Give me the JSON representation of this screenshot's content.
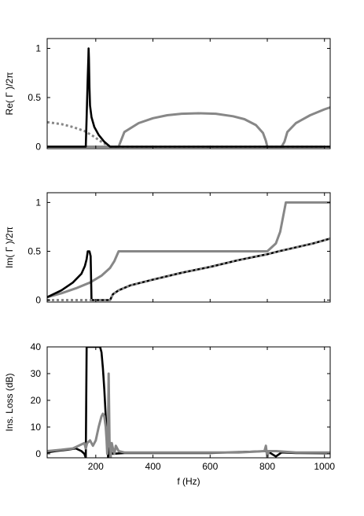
{
  "figure": {
    "xlabel": "f (Hz)"
  },
  "colors": {
    "black": "#000000",
    "gray": "#878787",
    "dotted": "#878787"
  },
  "chart_data": [
    {
      "type": "line",
      "ylabel": "Re( Γ )/2π",
      "xlim": [
        30,
        1020
      ],
      "ylim": [
        -0.02,
        1.1
      ],
      "xticks": [
        200,
        400,
        600,
        800,
        1000
      ],
      "xtick_labels": [
        "",
        "",
        "",
        "",
        ""
      ],
      "yticks": [
        0,
        0.5,
        1
      ],
      "ytick_labels": [
        "0",
        "0.5",
        "1"
      ],
      "series": [
        {
          "style": "dotted-gray",
          "x": [
            30,
            80,
            120,
            160,
            190,
            220,
            250,
            280,
            400,
            600,
            800,
            1000
          ],
          "y": [
            0.25,
            0.23,
            0.2,
            0.16,
            0.11,
            0.05,
            0,
            0,
            0,
            0,
            0,
            0
          ]
        },
        {
          "style": "solid-gray",
          "x": [
            30,
            250,
            280,
            300,
            350,
            400,
            450,
            500,
            560,
            620,
            680,
            720,
            760,
            785,
            795,
            800,
            850,
            860,
            870,
            900,
            950,
            1000,
            1020
          ],
          "y": [
            0,
            0,
            0,
            0.15,
            0.24,
            0.29,
            0.32,
            0.335,
            0.34,
            0.335,
            0.31,
            0.28,
            0.22,
            0.14,
            0.06,
            0,
            0,
            0.05,
            0.15,
            0.24,
            0.32,
            0.38,
            0.4
          ]
        },
        {
          "style": "solid-black",
          "x": [
            30,
            165,
            168,
            170,
            172,
            174,
            175,
            176,
            178,
            180,
            185,
            195,
            210,
            230,
            250,
            400,
            600,
            800,
            1000,
            1020
          ],
          "y": [
            0,
            0,
            0.3,
            0.5,
            0.7,
            0.9,
            1.0,
            0.9,
            0.6,
            0.42,
            0.3,
            0.2,
            0.12,
            0.05,
            0,
            0,
            0,
            0,
            0,
            0
          ]
        },
        {
          "style": "dotted-black",
          "x": [
            250,
            400,
            600,
            800,
            1020
          ],
          "y": [
            0,
            0,
            0,
            0,
            0
          ]
        }
      ]
    },
    {
      "type": "line",
      "ylabel": "Im( Γ )/2π",
      "xlim": [
        30,
        1020
      ],
      "ylim": [
        -0.02,
        1.1
      ],
      "xticks": [
        200,
        400,
        600,
        800,
        1000
      ],
      "xtick_labels": [
        "",
        "",
        "",
        "",
        ""
      ],
      "yticks": [
        0,
        0.5,
        1
      ],
      "ytick_labels": [
        "0",
        "0.5",
        "1"
      ],
      "series": [
        {
          "style": "solid-gray",
          "x": [
            30,
            80,
            130,
            180,
            220,
            250,
            265,
            280,
            400,
            600,
            800,
            830,
            845,
            855,
            865,
            1000,
            1020
          ],
          "y": [
            0.03,
            0.07,
            0.12,
            0.18,
            0.25,
            0.33,
            0.4,
            0.5,
            0.5,
            0.5,
            0.5,
            0.58,
            0.7,
            0.85,
            1.0,
            1.0,
            1.0
          ]
        },
        {
          "style": "solid-black",
          "x": [
            30,
            80,
            120,
            150,
            162,
            168,
            172,
            178,
            182,
            185,
            250,
            260,
            280,
            320,
            400,
            500,
            600,
            700,
            800,
            840,
            900,
            960,
            1020
          ],
          "y": [
            0.03,
            0.1,
            0.18,
            0.27,
            0.35,
            0.42,
            0.5,
            0.5,
            0.45,
            0,
            0,
            0.06,
            0.1,
            0.15,
            0.21,
            0.28,
            0.34,
            0.41,
            0.47,
            0.5,
            0.54,
            0.58,
            0.63
          ]
        },
        {
          "style": "dotted-gray",
          "x": [
            30,
            100,
            180,
            250,
            260,
            280,
            320,
            400,
            500,
            600,
            700,
            800,
            840,
            900,
            960,
            1020
          ],
          "y": [
            0,
            0,
            0,
            0,
            0.06,
            0.1,
            0.15,
            0.21,
            0.28,
            0.34,
            0.41,
            0.47,
            0.5,
            0.54,
            0.58,
            0.63
          ]
        }
      ]
    },
    {
      "type": "line",
      "ylabel": "Ins. Loss (dB)",
      "xlim": [
        30,
        1020
      ],
      "ylim": [
        -1.5,
        40
      ],
      "xticks": [
        200,
        400,
        600,
        800,
        1000
      ],
      "xtick_labels": [
        "200",
        "400",
        "600",
        "800",
        "1000"
      ],
      "yticks": [
        0,
        10,
        20,
        30,
        40
      ],
      "ytick_labels": [
        "0",
        "10",
        "20",
        "30",
        "40"
      ],
      "series": [
        {
          "style": "solid-black",
          "x": [
            30,
            60,
            100,
            130,
            150,
            160,
            165,
            168,
            172,
            180,
            200,
            215,
            220,
            225,
            230,
            235,
            240,
            243,
            246,
            250,
            260,
            300,
            400,
            600,
            800,
            830,
            850,
            900,
            1000,
            1020
          ],
          "y": [
            0.5,
            1,
            1.5,
            2,
            1,
            0,
            -1.5,
            40,
            40,
            40,
            40,
            40,
            38,
            32,
            24,
            14,
            6,
            -1.5,
            2,
            1,
            0,
            0.3,
            0.3,
            0.3,
            1,
            -1,
            0.5,
            0.3,
            0.2,
            0.2
          ]
        },
        {
          "style": "solid-gray",
          "x": [
            30,
            80,
            120,
            150,
            160,
            165,
            170,
            180,
            190,
            200,
            210,
            220,
            225,
            230,
            235,
            238,
            240,
            243,
            245,
            248,
            252,
            256,
            260,
            265,
            270,
            280,
            300,
            400,
            500,
            600,
            700,
            790,
            795,
            800,
            805,
            830,
            900,
            1000,
            1020
          ],
          "y": [
            1,
            1.5,
            2,
            3.5,
            4,
            2,
            4,
            5,
            3,
            5,
            10,
            14,
            15,
            14,
            10,
            5,
            0,
            10,
            30,
            5,
            -1.5,
            4,
            2,
            0,
            3,
            1,
            0.5,
            0.5,
            0.5,
            0.5,
            0.5,
            1,
            3,
            -1.5,
            1,
            1,
            0.5,
            0.5,
            0.5
          ]
        }
      ]
    }
  ]
}
